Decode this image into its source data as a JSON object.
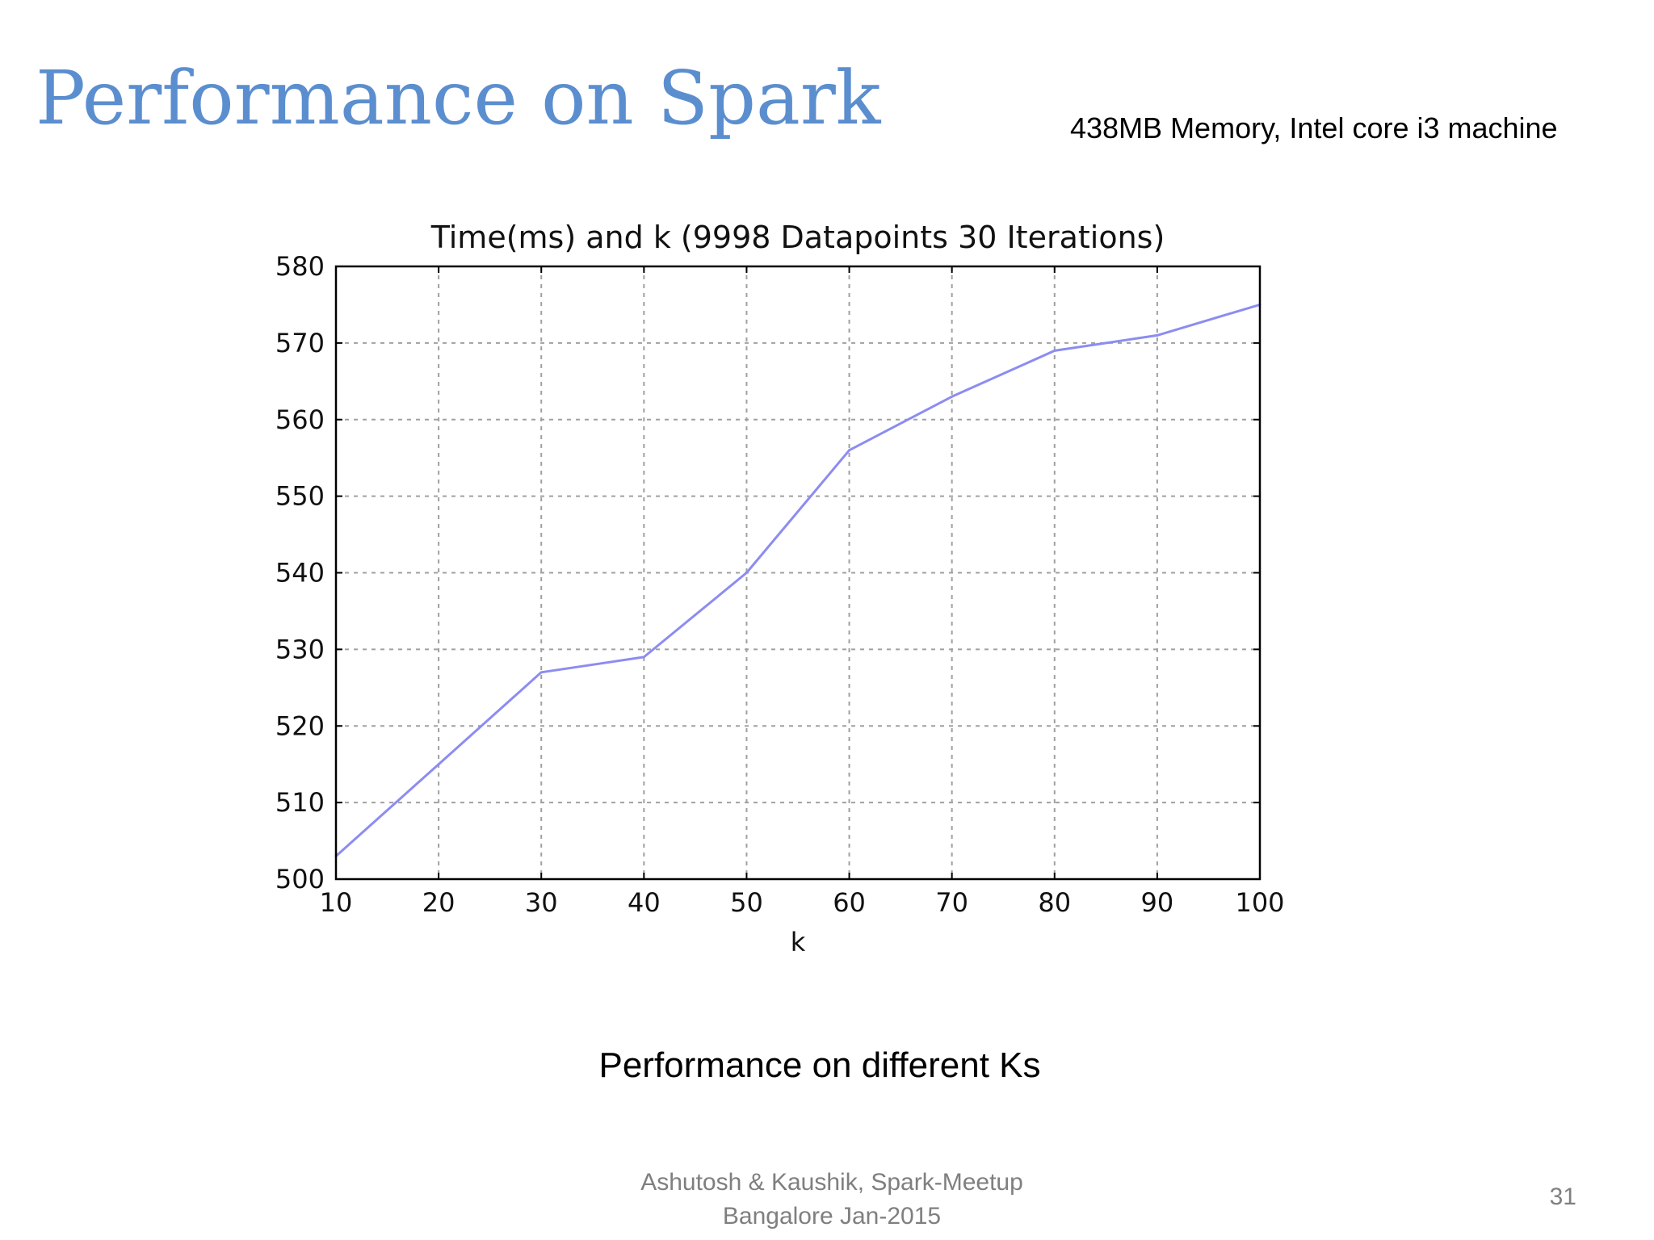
{
  "slide": {
    "title": "Performance on Spark",
    "subtitle": "438MB Memory, Intel core i3 machine",
    "caption": "Performance on different Ks",
    "footer_line1": "Ashutosh & Kaushik, Spark-Meetup",
    "footer_line2": "Bangalore Jan-2015",
    "page_number": "31"
  },
  "colors": {
    "title": "#5b8ecf",
    "series_line": "#8c8cf2",
    "grid": "#a0a0a0"
  },
  "chart_data": {
    "type": "line",
    "title": "Time(ms) and k (9998 Datapoints 30 Iterations)",
    "xlabel": "k",
    "ylabel": "",
    "xlim": [
      10,
      100
    ],
    "ylim": [
      500,
      580
    ],
    "xticks": [
      10,
      20,
      30,
      40,
      50,
      60,
      70,
      80,
      90,
      100
    ],
    "yticks": [
      500,
      510,
      520,
      530,
      540,
      550,
      560,
      570,
      580
    ],
    "grid": true,
    "series": [
      {
        "x": [
          10,
          20,
          30,
          40,
          50,
          60,
          70,
          80,
          90,
          100
        ],
        "values": [
          503,
          515,
          527,
          529,
          540,
          556,
          563,
          569,
          571,
          575
        ]
      }
    ]
  }
}
